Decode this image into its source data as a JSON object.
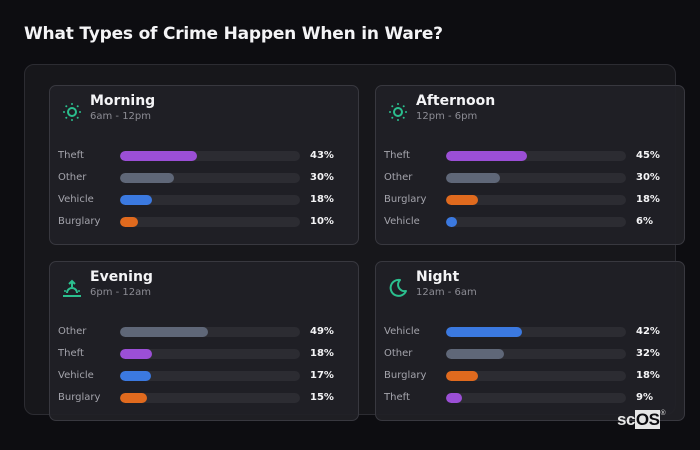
{
  "title": "What Types of Crime Happen When in Ware?",
  "logo": {
    "text_a": "sc",
    "text_b": "OS",
    "mark": "®"
  },
  "colors": {
    "Theft": "#9b4fd6",
    "Other": "#5f6778",
    "Vehicle": "#3b79e0",
    "Burglary": "#e06a1e",
    "icon": "#2bbf8e"
  },
  "chart_data": [
    {
      "type": "bar",
      "orientation": "horizontal",
      "title": "Morning",
      "subtitle": "6am - 12pm",
      "icon": "sun-icon",
      "categories": [
        "Theft",
        "Other",
        "Vehicle",
        "Burglary"
      ],
      "values": [
        43,
        30,
        18,
        10
      ],
      "labels": [
        "43%",
        "30%",
        "18%",
        "10%"
      ],
      "xlim": [
        0,
        100
      ],
      "unit": "%"
    },
    {
      "type": "bar",
      "orientation": "horizontal",
      "title": "Afternoon",
      "subtitle": "12pm - 6pm",
      "icon": "sun-icon",
      "categories": [
        "Theft",
        "Other",
        "Burglary",
        "Vehicle"
      ],
      "values": [
        45,
        30,
        18,
        6
      ],
      "labels": [
        "45%",
        "30%",
        "18%",
        "6%"
      ],
      "xlim": [
        0,
        100
      ],
      "unit": "%"
    },
    {
      "type": "bar",
      "orientation": "horizontal",
      "title": "Evening",
      "subtitle": "6pm - 12am",
      "icon": "sunset-icon",
      "categories": [
        "Other",
        "Theft",
        "Vehicle",
        "Burglary"
      ],
      "values": [
        49,
        18,
        17,
        15
      ],
      "labels": [
        "49%",
        "18%",
        "17%",
        "15%"
      ],
      "xlim": [
        0,
        100
      ],
      "unit": "%"
    },
    {
      "type": "bar",
      "orientation": "horizontal",
      "title": "Night",
      "subtitle": "12am - 6am",
      "icon": "moon-icon",
      "categories": [
        "Vehicle",
        "Other",
        "Burglary",
        "Theft"
      ],
      "values": [
        42,
        32,
        18,
        9
      ],
      "labels": [
        "42%",
        "32%",
        "18%",
        "9%"
      ],
      "xlim": [
        0,
        100
      ],
      "unit": "%"
    }
  ]
}
